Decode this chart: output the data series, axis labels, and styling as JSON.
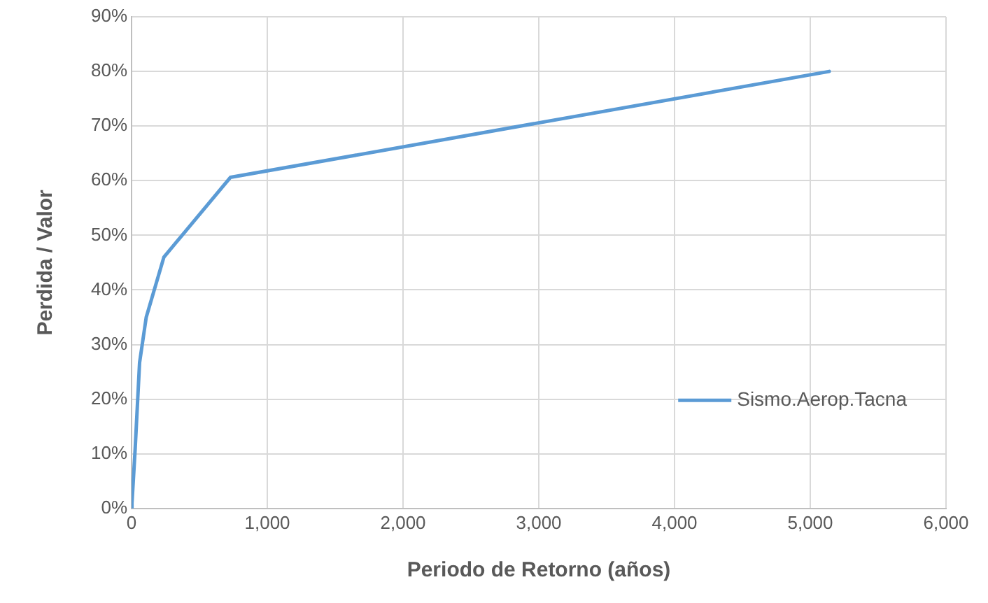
{
  "chart_data": {
    "type": "line",
    "xlabel": "Periodo de Retorno (años)",
    "ylabel": "Perdida / Valor",
    "series": [
      {
        "name": "Sismo.Aerop.Tacna",
        "color": "#5b9bd5",
        "x": [
          0,
          3,
          26,
          59,
          108,
          238,
          728,
          5140
        ],
        "values": [
          0,
          1,
          10.7,
          26.7,
          35,
          46,
          60.6,
          80
        ]
      }
    ],
    "xlim": [
      0,
      6000
    ],
    "xticks": [
      {
        "value": 0,
        "label": "0"
      },
      {
        "value": 1000,
        "label": "1,000"
      },
      {
        "value": 2000,
        "label": "2,000"
      },
      {
        "value": 3000,
        "label": "3,000"
      },
      {
        "value": 4000,
        "label": "4,000"
      },
      {
        "value": 5000,
        "label": "5,000"
      },
      {
        "value": 6000,
        "label": "6,000"
      }
    ],
    "ylim": [
      0,
      90
    ],
    "yticks": [
      {
        "value": 0,
        "label": "0%"
      },
      {
        "value": 10,
        "label": "10%"
      },
      {
        "value": 20,
        "label": "20%"
      },
      {
        "value": 30,
        "label": "30%"
      },
      {
        "value": 40,
        "label": "40%"
      },
      {
        "value": 50,
        "label": "50%"
      },
      {
        "value": 60,
        "label": "60%"
      },
      {
        "value": 70,
        "label": "70%"
      },
      {
        "value": 80,
        "label": "80%"
      },
      {
        "value": 90,
        "label": "90%"
      }
    ],
    "grid": true,
    "legend": "right",
    "marker": "none",
    "line_style": "solid"
  }
}
